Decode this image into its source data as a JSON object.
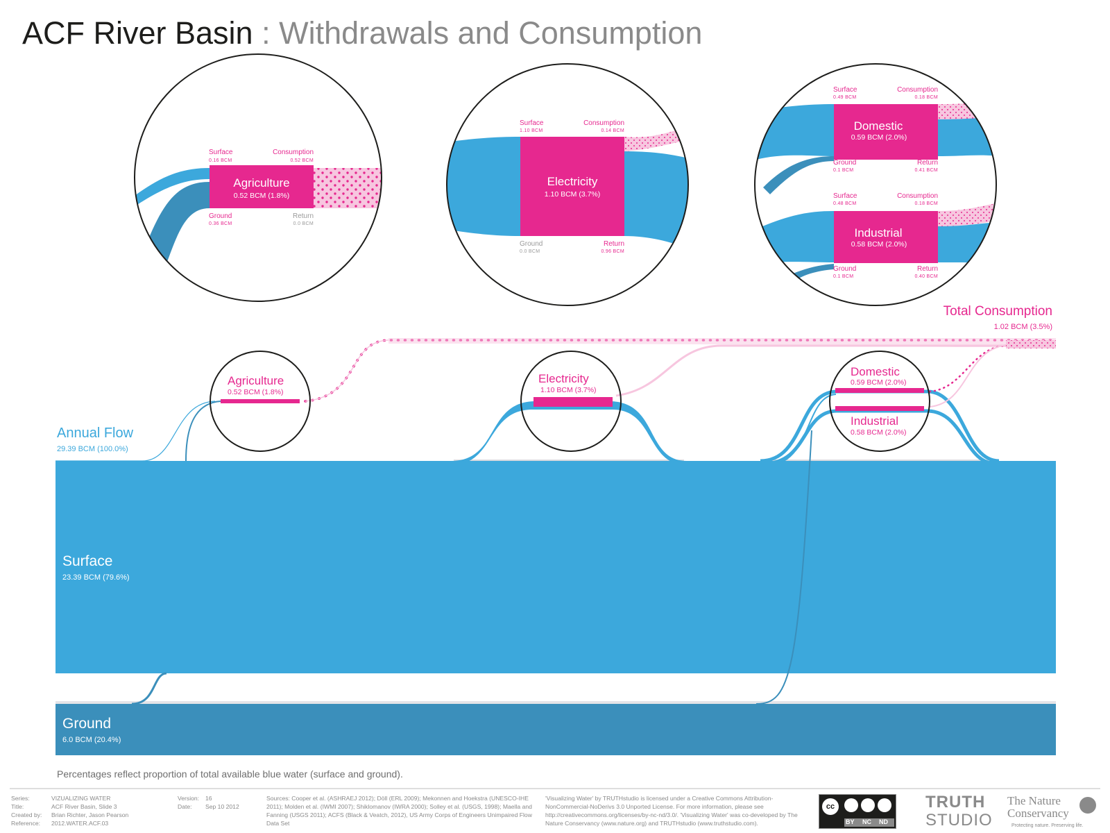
{
  "title": {
    "main": "ACF River Basin",
    "separator": " : ",
    "sub": "Withdrawals and Consumption"
  },
  "colors": {
    "surface": "#3ca8dc",
    "ground": "#3b8fbb",
    "consumption": "#e6288f",
    "consumption_light": "#f7c6df",
    "return_grey": "#d9d9de"
  },
  "zoom": {
    "agriculture": {
      "name": "Agriculture",
      "value": "0.52 BCM (1.8%)",
      "surface_label": "Surface",
      "surface_value": "0.16 BCM",
      "consumption_label": "Consumption",
      "consumption_value": "0.52 BCM",
      "ground_label": "Ground",
      "ground_value": "0.36 BCM",
      "return_label": "Return",
      "return_value": "0.0 BCM"
    },
    "electricity": {
      "name": "Electricity",
      "value": "1.10 BCM (3.7%)",
      "surface_label": "Surface",
      "surface_value": "1.10 BCM",
      "consumption_label": "Consumption",
      "consumption_value": "0.14 BCM",
      "ground_label": "Ground",
      "ground_value": "0.0 BCM",
      "return_label": "Return",
      "return_value": "0.96 BCM"
    },
    "domestic": {
      "name": "Domestic",
      "value": "0.59 BCM (2.0%)",
      "surface_label": "Surface",
      "surface_value": "0.49 BCM",
      "consumption_label": "Consumption",
      "consumption_value": "0.18 BCM",
      "ground_label": "Ground",
      "ground_value": "0.1 BCM",
      "return_label": "Return",
      "return_value": "0.41 BCM"
    },
    "industrial": {
      "name": "Industrial",
      "value": "0.58 BCM (2.0%)",
      "surface_label": "Surface",
      "surface_value": "0.48 BCM",
      "consumption_label": "Consumption",
      "consumption_value": "0.18 BCM",
      "ground_label": "Ground",
      "ground_value": "0.1 BCM",
      "return_label": "Return",
      "return_value": "0.40 BCM"
    }
  },
  "flow": {
    "total_consumption": {
      "label": "Total Consumption",
      "value": "1.02 BCM (3.5%)"
    },
    "annual_flow": {
      "label": "Annual Flow",
      "value": "29.39 BCM (100.0%)"
    },
    "surface": {
      "label": "Surface",
      "value": "23.39 BCM (79.6%)"
    },
    "ground": {
      "label": "Ground",
      "value": "6.0 BCM (20.4%)"
    },
    "agriculture": {
      "label": "Agriculture",
      "value": "0.52 BCM (1.8%)"
    },
    "electricity": {
      "label": "Electricity",
      "value": "1.10 BCM (3.7%)"
    },
    "domestic": {
      "label": "Domestic",
      "value": "0.59 BCM (2.0%)"
    },
    "industrial": {
      "label": "Industrial",
      "value": "0.58 BCM (2.0%)"
    }
  },
  "note": "Percentages reflect proportion of total available blue water (surface and ground).",
  "footer": {
    "series_key": "Series:",
    "series_val": "VIZUALIZING WATER",
    "title_key": "Title:",
    "title_val": "ACF River Basin, Slide 3",
    "created_key": "Created by:",
    "created_val": "Brian Richter, Jason Pearson",
    "ref_key": "Reference:",
    "ref_val": "2012.WATER.ACF.03",
    "version_key": "Version:",
    "version_val": "16",
    "date_key": "Date:",
    "date_val": "Sep 10 2012",
    "sources": "Sources: Cooper et al. (ASHRAEJ 2012); Döll (ERL 2009); Mekonnen and Hoekstra (UNESCO-IHE 2011); Molden et al. (IWMI 2007); Shiklomanov (IWRA 2000); Solley et al. (USGS, 1998); Maella and Fanning (USGS 2011); ACFS (Black & Veatch, 2012), US Army Corps of Engineers Unimpaired Flow Data Set",
    "license": "'Visualizing Water' by TRUTHstudio is licensed under a Creative Commons Attribution-NonCommercial-NoDerivs 3.0 Unported License.  For more information, please see http://creativecommons.org/licenses/by-nc-nd/3.0/.  'Visualizing Water' was co-developed by The Nature Conservancy (www.nature.org) and TRUTHstudio (www.truthstudio.com).",
    "cc_by": "BY",
    "cc_nc": "NC",
    "cc_nd": "ND",
    "truth": "TRUTH",
    "studio": "STUDIO",
    "tnc_line1": "The Nature",
    "tnc_line2": "Conservancy",
    "tnc_tag": "Protecting nature. Preserving life."
  }
}
